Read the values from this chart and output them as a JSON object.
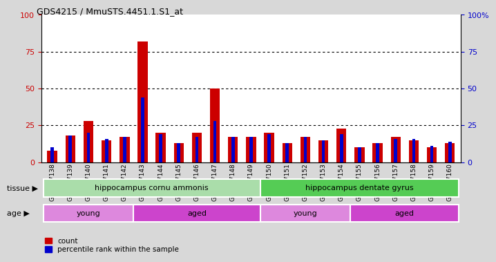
{
  "title": "GDS4215 / MmuSTS.4451.1.S1_at",
  "samples": [
    "GSM297138",
    "GSM297139",
    "GSM297140",
    "GSM297141",
    "GSM297142",
    "GSM297143",
    "GSM297144",
    "GSM297145",
    "GSM297146",
    "GSM297147",
    "GSM297148",
    "GSM297149",
    "GSM297150",
    "GSM297151",
    "GSM297152",
    "GSM297153",
    "GSM297154",
    "GSM297155",
    "GSM297156",
    "GSM297157",
    "GSM297158",
    "GSM297159",
    "GSM297160"
  ],
  "count": [
    8,
    18,
    28,
    15,
    17,
    82,
    20,
    13,
    20,
    50,
    17,
    17,
    20,
    13,
    17,
    15,
    23,
    10,
    13,
    17,
    15,
    10,
    13
  ],
  "percentile": [
    10,
    18,
    20,
    16,
    17,
    44,
    19,
    13,
    17,
    28,
    17,
    17,
    19,
    13,
    17,
    15,
    19,
    10,
    13,
    16,
    16,
    11,
    14
  ],
  "red": "#cc0000",
  "blue": "#0000cc",
  "bg_color": "#d8d8d8",
  "plot_bg": "#ffffff",
  "tissue_groups": [
    {
      "label": "hippocampus cornu ammonis",
      "start": 0,
      "end": 12,
      "color": "#aaddaa"
    },
    {
      "label": "hippocampus dentate gyrus",
      "start": 12,
      "end": 23,
      "color": "#55cc55"
    }
  ],
  "age_groups": [
    {
      "label": "young",
      "start": 0,
      "end": 5,
      "color": "#dd88dd"
    },
    {
      "label": "aged",
      "start": 5,
      "end": 12,
      "color": "#cc44cc"
    },
    {
      "label": "young",
      "start": 12,
      "end": 17,
      "color": "#dd88dd"
    },
    {
      "label": "aged",
      "start": 17,
      "end": 23,
      "color": "#cc44cc"
    }
  ],
  "ylim": [
    0,
    100
  ],
  "yticks": [
    0,
    25,
    50,
    75,
    100
  ],
  "red_bar_width": 0.55,
  "blue_bar_width": 0.18,
  "tissue_label": "tissue ▶",
  "age_label": "age ▶"
}
